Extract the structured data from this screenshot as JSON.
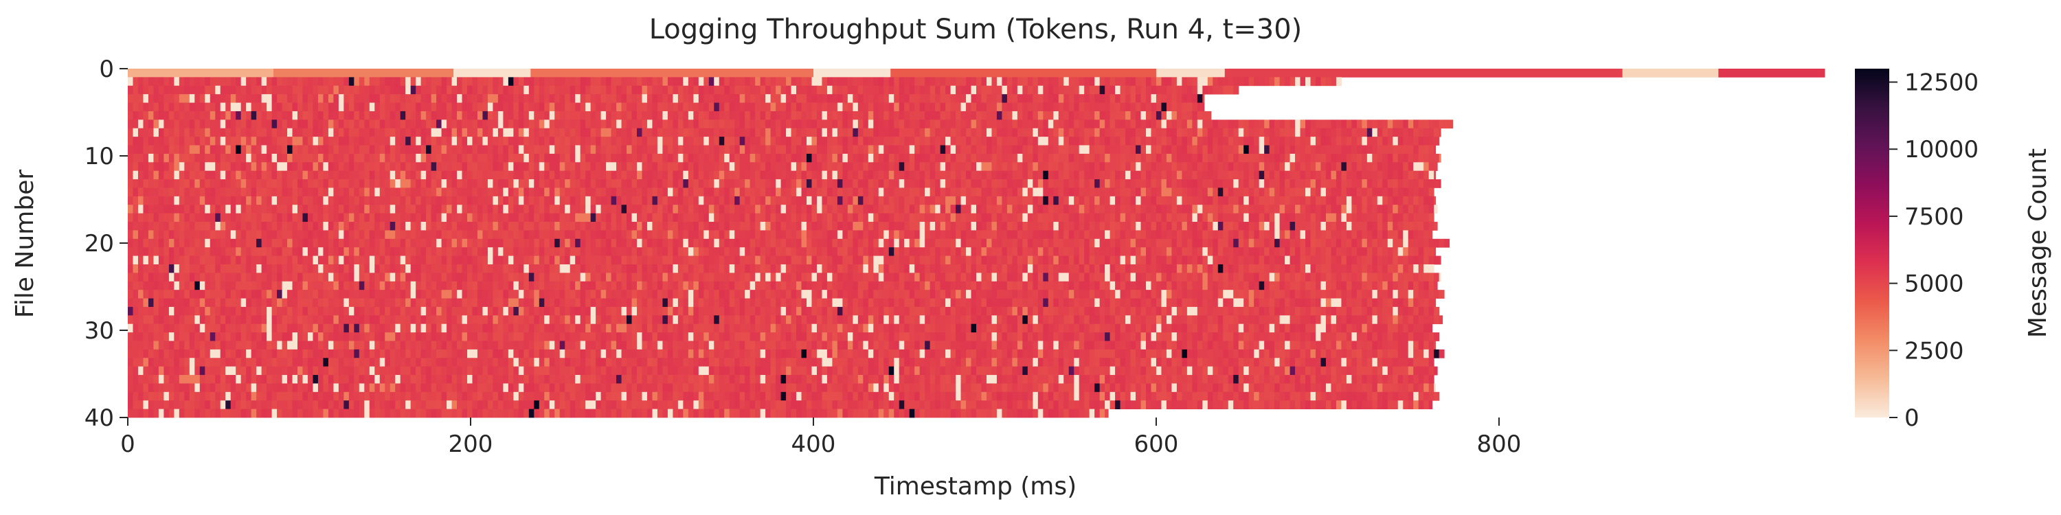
{
  "chart_data": {
    "type": "heatmap",
    "title": "Logging Throughput Sum (Tokens, Run 4, t=30)",
    "xlabel": "Timestamp (ms)",
    "ylabel": "File Number",
    "colorbar_label": "Message Count",
    "xlim": [
      0,
      990
    ],
    "ylim": [
      0,
      40
    ],
    "x_ticks": [
      0,
      200,
      400,
      600,
      800
    ],
    "y_ticks": [
      0,
      10,
      20,
      30,
      40
    ],
    "colorbar_ticks": [
      0,
      2500,
      5000,
      7500,
      10000,
      12500
    ],
    "colorbar_range": [
      0,
      13000
    ],
    "colormap": [
      "#faebdd",
      "#f6bb97",
      "#f28c66",
      "#eb5a4a",
      "#dd3050",
      "#ba1656",
      "#8e0e5a",
      "#611357",
      "#37123f",
      "#03051a"
    ],
    "file_row_end_ms": [
      990,
      708,
      648,
      628,
      628,
      632,
      773,
      766,
      765,
      763,
      766,
      764,
      763,
      766,
      762,
      763,
      764,
      762,
      764,
      761,
      771,
      763,
      766,
      762,
      766,
      764,
      768,
      763,
      765,
      767,
      761,
      765,
      763,
      768,
      762,
      764,
      762,
      763,
      765,
      761,
      572
    ],
    "typical_message_count": 5200,
    "row0_segments": [
      {
        "start_ms": 0,
        "end_ms": 85,
        "value": 1800
      },
      {
        "start_ms": 85,
        "end_ms": 190,
        "value": 3200
      },
      {
        "start_ms": 190,
        "end_ms": 235,
        "value": 300
      },
      {
        "start_ms": 235,
        "end_ms": 400,
        "value": 3600
      },
      {
        "start_ms": 400,
        "end_ms": 445,
        "value": 200
      },
      {
        "start_ms": 445,
        "end_ms": 600,
        "value": 4300
      },
      {
        "start_ms": 600,
        "end_ms": 640,
        "value": 400
      },
      {
        "start_ms": 640,
        "end_ms": 872,
        "value": 5200
      },
      {
        "start_ms": 872,
        "end_ms": 928,
        "value": 700
      },
      {
        "start_ms": 928,
        "end_ms": 990,
        "value": 5600
      }
    ],
    "peak_message_count": 13000
  }
}
